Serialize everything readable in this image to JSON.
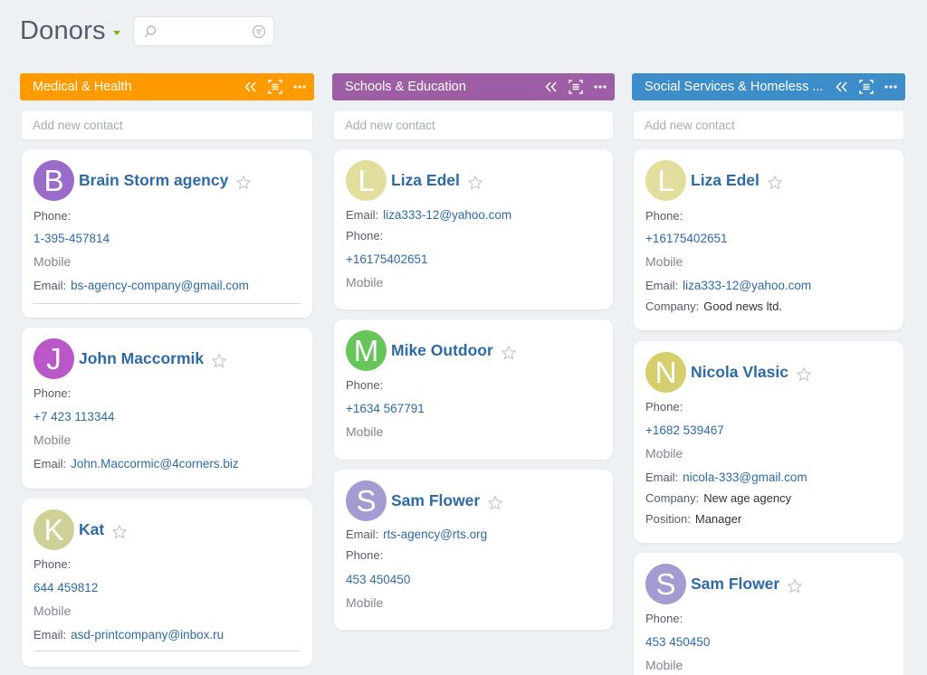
{
  "page": {
    "title": "Donors",
    "search_placeholder": ""
  },
  "columns": [
    {
      "title": "Medical & Health",
      "color": "#ff9a00",
      "add_label": "Add new contact",
      "cards": [
        {
          "initial": "B",
          "avatar_color": "#9b6bc9",
          "name": "Brain Storm agency",
          "phone_label": "Phone:",
          "phone": "1-395-457814",
          "phone_type": "Mobile",
          "email_label": "Email:",
          "email": "bs-agency-company@gmail.com"
        },
        {
          "initial": "J",
          "avatar_color": "#bb58c9",
          "name": "John Maccormik",
          "phone_label": "Phone:",
          "phone": "+7 423 113344",
          "phone_type": "Mobile",
          "email_label": "Email:",
          "email": "John.Maccormic@4corners.biz"
        },
        {
          "initial": "K",
          "avatar_color": "#cfd098",
          "name": "Kat",
          "phone_label": "Phone:",
          "phone": "644 459812",
          "phone_type": "Mobile",
          "email_label": "Email:",
          "email": "asd-printcompany@inbox.ru"
        }
      ]
    },
    {
      "title": "Schools & Education",
      "color": "#9e5ea6",
      "add_label": "Add new contact",
      "cards": [
        {
          "initial": "L",
          "avatar_color": "#e2df9e",
          "name": "Liza Edel",
          "email_label": "Email:",
          "email": "liza333-12@yahoo.com",
          "phone_label": "Phone:",
          "phone": "+16175402651",
          "phone_type": "Mobile"
        },
        {
          "initial": "M",
          "avatar_color": "#67c659",
          "name": "Mike Outdoor",
          "phone_label": "Phone:",
          "phone": "+1634 567791",
          "phone_type": "Mobile"
        },
        {
          "initial": "S",
          "avatar_color": "#a39bd2",
          "name": "Sam Flower",
          "email_label": "Email:",
          "email": "rts-agency@rts.org",
          "phone_label": "Phone:",
          "phone": "453 450450",
          "phone_type": "Mobile"
        }
      ]
    },
    {
      "title": "Social Services & Homeless ...",
      "color": "#3d8dc8",
      "add_label": "Add new contact",
      "cards": [
        {
          "initial": "L",
          "avatar_color": "#e2df9e",
          "name": "Liza Edel",
          "phone_label": "Phone:",
          "phone": "+16175402651",
          "phone_type": "Mobile",
          "email_label": "Email:",
          "email": "liza333-12@yahoo.com",
          "company_label": "Company:",
          "company": "Good news ltd."
        },
        {
          "initial": "N",
          "avatar_color": "#d4cf6c",
          "name": "Nicola Vlasic",
          "phone_label": "Phone:",
          "phone": "+1682 539467",
          "phone_type": "Mobile",
          "email_label": "Email:",
          "email": "nicola-333@gmail.com",
          "company_label": "Company:",
          "company": "New age agency",
          "position_label": "Position:",
          "position": "Manager"
        },
        {
          "initial": "S",
          "avatar_color": "#a39bd2",
          "name": "Sam Flower",
          "phone_label": "Phone:",
          "phone": "453 450450",
          "phone_type": "Mobile"
        }
      ]
    }
  ],
  "icons": {
    "search": "search-icon",
    "filter": "filter-icon",
    "collapse": "double-chevron-left-icon",
    "settings": "fields-settings-icon",
    "more": "more-icon",
    "star": "star-outline-icon"
  }
}
